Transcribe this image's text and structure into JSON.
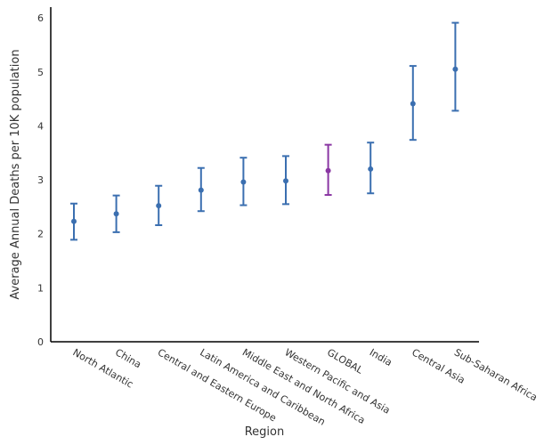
{
  "chart_data": {
    "type": "scatter",
    "title": "",
    "xlabel": "Region",
    "ylabel": "Average Annual Deaths per 10K population",
    "ylim": [
      0,
      6.2
    ],
    "yticks": [
      "0",
      "1",
      "2",
      "3",
      "4",
      "5",
      "6"
    ],
    "grid": false,
    "categories": [
      "North Atlantic",
      "China",
      "Central and Eastern Europe",
      "Latin America and Caribbean",
      "Middle East and North Africa",
      "Western Pacific and Asia",
      "GLOBAL",
      "India",
      "Central Asia",
      "Sub-Saharan Africa"
    ],
    "series": [
      {
        "values": [
          2.23,
          2.37,
          2.52,
          2.81,
          2.96,
          2.98,
          3.17,
          3.2,
          4.41,
          5.05
        ],
        "lower": [
          1.89,
          2.03,
          2.16,
          2.42,
          2.53,
          2.55,
          2.72,
          2.75,
          3.74,
          4.28
        ],
        "upper": [
          2.56,
          2.71,
          2.89,
          3.22,
          3.41,
          3.44,
          3.65,
          3.69,
          5.11,
          5.91
        ]
      }
    ],
    "colors": {
      "default": "#3b6fb0",
      "highlight": "#8a37a3",
      "highlight_category": "GLOBAL"
    }
  }
}
